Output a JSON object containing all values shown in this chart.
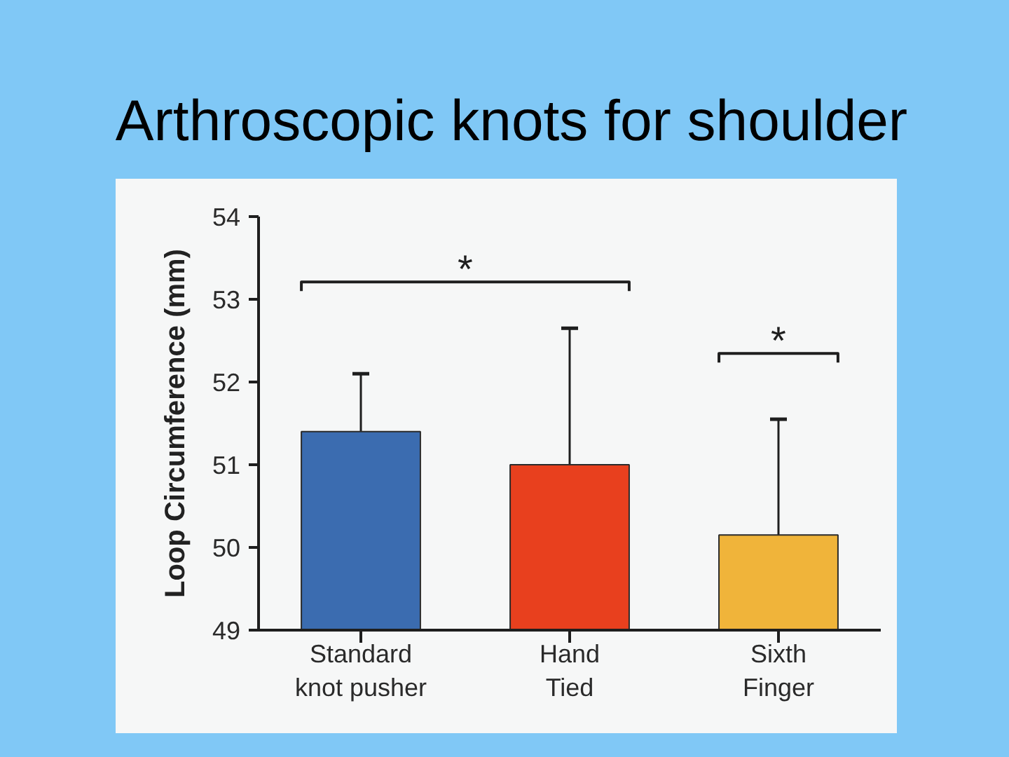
{
  "chart_data": {
    "type": "bar",
    "title": "Arthroscopic knots for shoulder",
    "ylabel": "Loop Circumference (mm)",
    "categories": [
      "Standard knot pusher",
      "Hand Tied",
      "Sixth Finger"
    ],
    "values": [
      51.4,
      51.0,
      50.15
    ],
    "colors": [
      "#3b6cb0",
      "#e8401e",
      "#f0b43a"
    ],
    "errors": [
      [
        51.4,
        52.1
      ],
      [
        51.0,
        52.65
      ],
      [
        50.15,
        51.55
      ]
    ],
    "ylim": [
      49,
      54
    ],
    "yticks": [
      49,
      50,
      51,
      52,
      53,
      54
    ],
    "annotations": [
      "*",
      "*"
    ],
    "grid": false
  }
}
